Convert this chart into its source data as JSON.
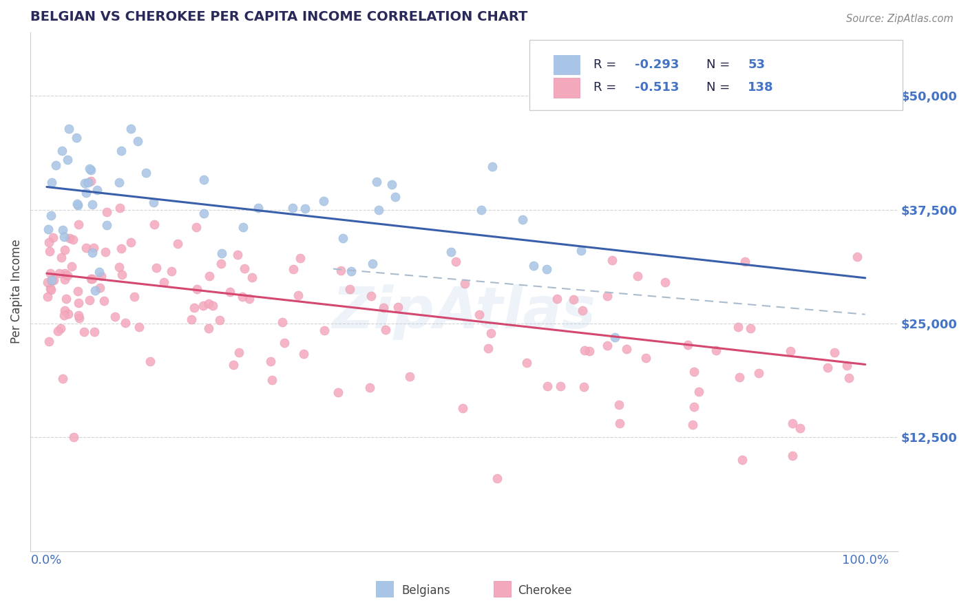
{
  "title": "BELGIAN VS CHEROKEE PER CAPITA INCOME CORRELATION CHART",
  "source": "Source: ZipAtlas.com",
  "ylabel": "Per Capita Income",
  "xlim": [
    -2.0,
    104.0
  ],
  "ylim": [
    0,
    57000
  ],
  "yticks": [
    12500,
    25000,
    37500,
    50000
  ],
  "ytick_labels": [
    "$12,500",
    "$25,000",
    "$37,500",
    "$50,000"
  ],
  "xtick_labels": [
    "0.0%",
    "100.0%"
  ],
  "belgian_color": "#a8c4e6",
  "cherokee_color": "#f4a8bc",
  "trend_blue": "#3a5faa",
  "trend_pink": "#d44870",
  "trend_gray": "#aabbcc",
  "watermark": "ZipAtlas",
  "title_color": "#2a2a5a",
  "tick_color": "#4472c4",
  "source_color": "#888888",
  "belgian_trend_x": [
    0,
    100
  ],
  "belgian_trend_y": [
    40000,
    30000
  ],
  "cherokee_trend_x": [
    0,
    100
  ],
  "cherokee_trend_y": [
    30500,
    20500
  ],
  "gray_trend_x": [
    35,
    100
  ],
  "gray_trend_y": [
    31000,
    26000
  ],
  "background_color": "#ffffff",
  "grid_color": "#c8c8c8"
}
